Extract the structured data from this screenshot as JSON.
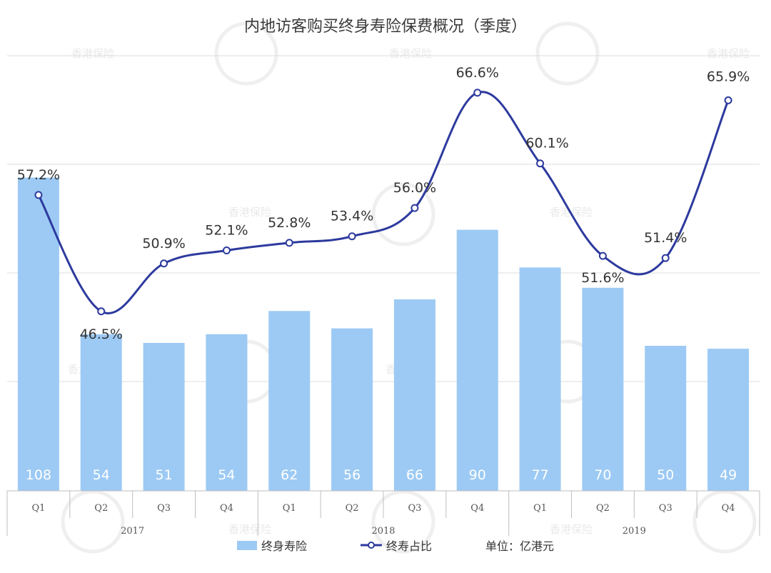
{
  "chart_data": {
    "type": "bar",
    "title": "内地访客购买终身寿险保费概况（季度）",
    "categories": [
      "Q1",
      "Q2",
      "Q3",
      "Q4",
      "Q1",
      "Q2",
      "Q3",
      "Q4",
      "Q1",
      "Q2",
      "Q3",
      "Q4"
    ],
    "groups": [
      {
        "label": "2017",
        "span": 4
      },
      {
        "label": "2018",
        "span": 4
      },
      {
        "label": "2019",
        "span": 4
      }
    ],
    "series": [
      {
        "name": "终身寿险",
        "kind": "bar",
        "color": "#9ccaf4",
        "values": [
          108,
          54,
          51,
          54,
          62,
          56,
          66,
          90,
          77,
          70,
          50,
          49
        ],
        "labels": [
          "108",
          "54",
          "51",
          "54",
          "62",
          "56",
          "66",
          "90",
          "77",
          "70",
          "50",
          "49"
        ]
      },
      {
        "name": "终寿占比",
        "kind": "line",
        "color": "#2d3a9e",
        "values": [
          57.2,
          46.5,
          50.9,
          52.1,
          52.8,
          53.4,
          56.0,
          66.6,
          60.1,
          51.6,
          51.4,
          65.9
        ],
        "labels": [
          "57.2%",
          "46.5%",
          "50.9%",
          "52.1%",
          "52.8%",
          "53.4%",
          "56.0%",
          "66.6%",
          "60.1%",
          "51.6%",
          "51.4%",
          "65.9%"
        ]
      }
    ],
    "bar_ylim": [
      0,
      150
    ],
    "line_ylim": [
      30,
      70
    ],
    "grid": true,
    "legend_position": "bottom",
    "unit_note": "单位：亿港元",
    "watermark": "香港保险"
  }
}
